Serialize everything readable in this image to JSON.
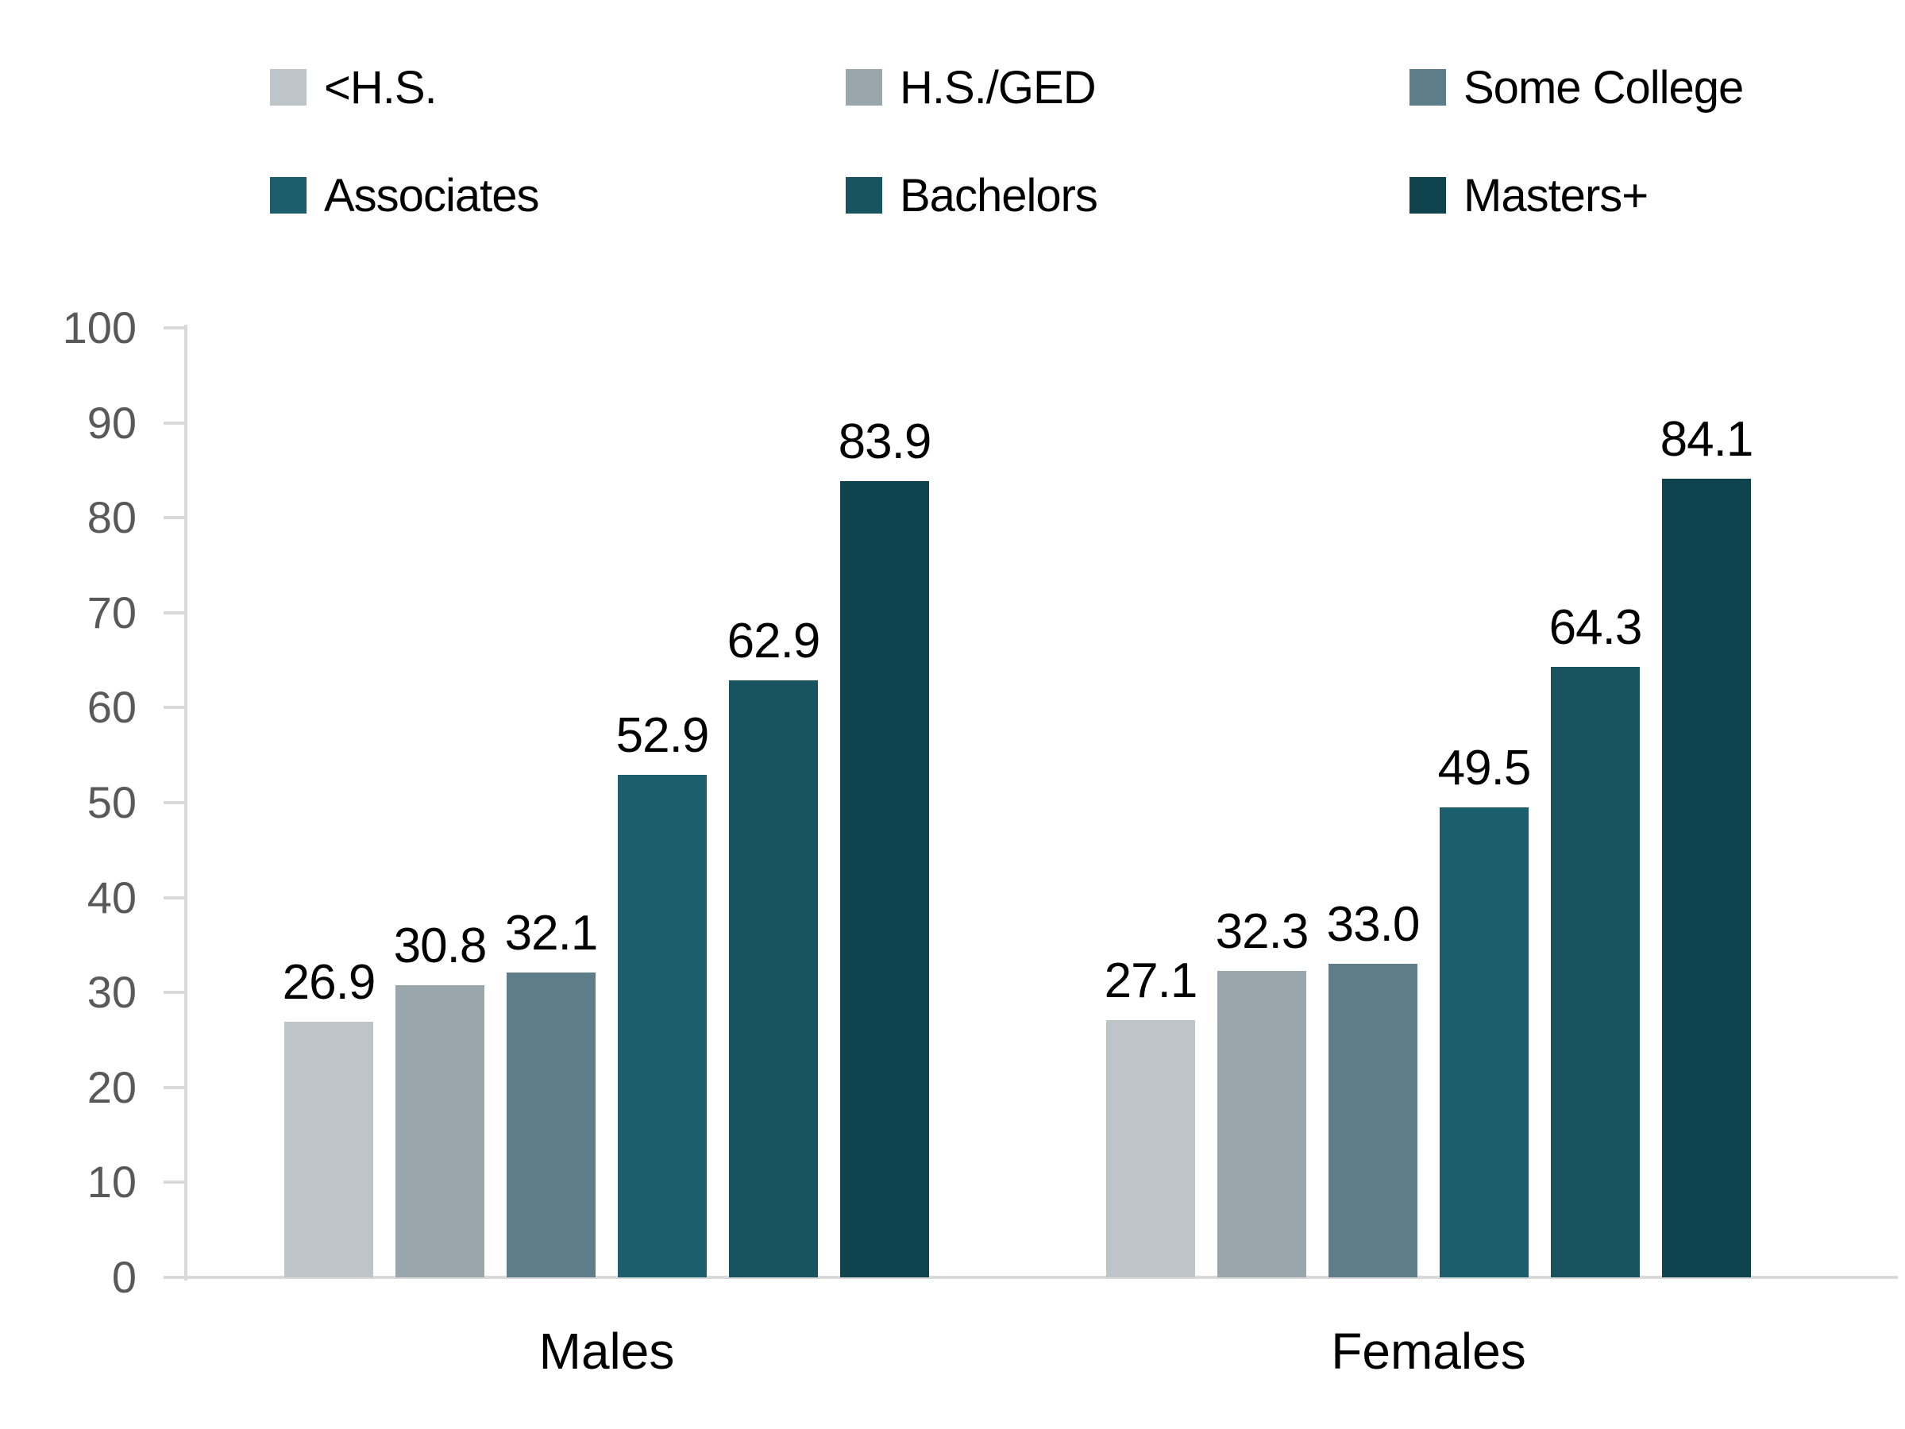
{
  "chart_data": {
    "type": "bar",
    "title": "",
    "xlabel": "",
    "ylabel": "",
    "categories": [
      "Males",
      "Females"
    ],
    "series": [
      {
        "name": "<H.S.",
        "color": "#bec5c8",
        "values": [
          26.9,
          27.1
        ],
        "labels": [
          "26.9",
          "27.1"
        ]
      },
      {
        "name": "H.S./GED",
        "color": "#99a6ab",
        "values": [
          30.8,
          32.3
        ],
        "labels": [
          "30.8",
          "32.3"
        ]
      },
      {
        "name": "Some College",
        "color": "#5d7e89",
        "values": [
          32.1,
          33.0
        ],
        "labels": [
          "32.1",
          "33.0"
        ]
      },
      {
        "name": "Associates",
        "color": "#1d5e6d",
        "values": [
          52.9,
          49.5
        ],
        "labels": [
          "52.9",
          "49.5"
        ]
      },
      {
        "name": "Bachelors",
        "color": "#175361",
        "values": [
          62.9,
          64.3
        ],
        "labels": [
          "62.9",
          "64.3"
        ]
      },
      {
        "name": "Masters+",
        "color": "#0f434e",
        "values": [
          83.9,
          84.1
        ],
        "labels": [
          "83.9",
          "84.1"
        ]
      }
    ],
    "ylim": [
      0,
      100
    ],
    "yticks": [
      0,
      10,
      20,
      30,
      40,
      50,
      60,
      70,
      80,
      90,
      100
    ],
    "grid": false,
    "legend_position": "top",
    "data_labels": true,
    "colors": {
      "axis_line": "#d9d9d9",
      "tick_label": "#595959",
      "data_label": "#000000",
      "background": "#ffffff"
    }
  }
}
